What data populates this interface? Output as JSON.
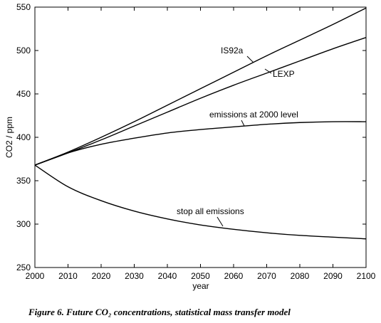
{
  "chart_data": {
    "type": "line",
    "xlabel": "year",
    "ylabel": "CO2 / ppm",
    "xlim": [
      2000,
      2100
    ],
    "ylim": [
      250,
      550
    ],
    "xticks": [
      2000,
      2010,
      2020,
      2030,
      2040,
      2050,
      2060,
      2070,
      2080,
      2090,
      2100
    ],
    "yticks": [
      250,
      300,
      350,
      400,
      450,
      500,
      550
    ],
    "grid": false,
    "legend": "none",
    "series": [
      {
        "name": "IS92a",
        "x": [
          2000,
          2010,
          2020,
          2030,
          2040,
          2050,
          2060,
          2070,
          2080,
          2090,
          2100
        ],
        "y": [
          368,
          383,
          400,
          418,
          437,
          456,
          475,
          494,
          512,
          530,
          549
        ]
      },
      {
        "name": "LEXP",
        "x": [
          2000,
          2010,
          2020,
          2030,
          2040,
          2050,
          2060,
          2070,
          2080,
          2090,
          2100
        ],
        "y": [
          368,
          382,
          397,
          413,
          429,
          445,
          460,
          474,
          488,
          502,
          515
        ]
      },
      {
        "name": "emissions at 2000 level",
        "x": [
          2000,
          2010,
          2020,
          2030,
          2040,
          2050,
          2060,
          2070,
          2080,
          2090,
          2100
        ],
        "y": [
          368,
          382,
          392,
          399,
          405,
          409,
          412,
          415,
          417,
          418,
          418
        ]
      },
      {
        "name": "stop all emissions",
        "x": [
          2000,
          2010,
          2020,
          2030,
          2040,
          2050,
          2060,
          2070,
          2080,
          2090,
          2100
        ],
        "y": [
          368,
          343,
          327,
          315,
          306,
          299,
          294,
          290,
          287,
          285,
          283
        ]
      }
    ],
    "annotations": [
      {
        "text": "IS92a",
        "series": "IS92a"
      },
      {
        "text": "LEXP",
        "series": "LEXP"
      },
      {
        "text": "emissions at 2000 level",
        "series": "emissions at 2000 level"
      },
      {
        "text": "stop all emissions",
        "series": "stop all emissions"
      }
    ]
  },
  "caption": "Figure 6. Future CO₂ concentrations, statistical mass transfer model"
}
